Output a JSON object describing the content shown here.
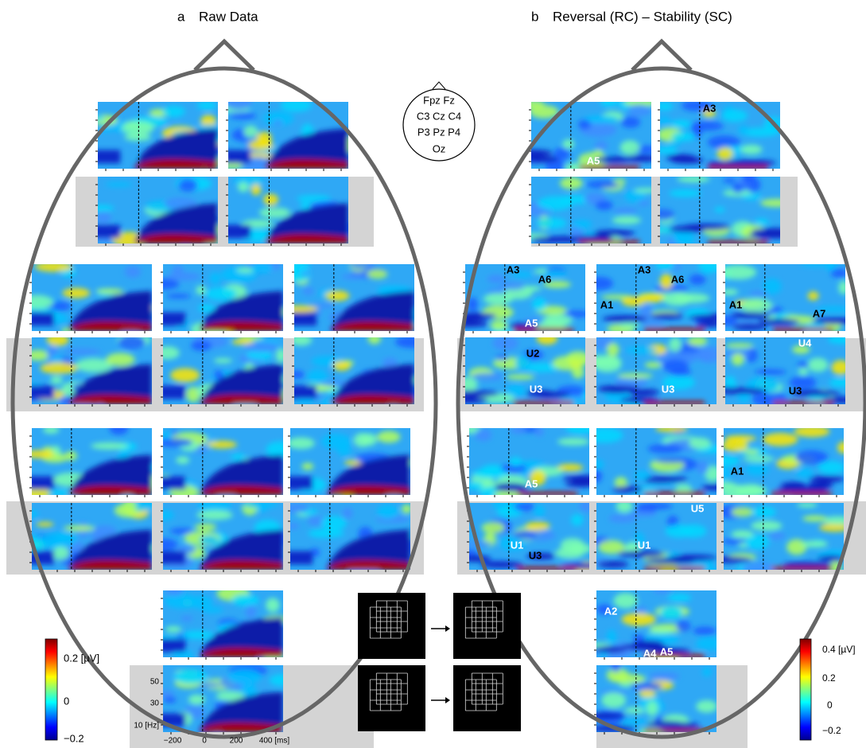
{
  "panels": {
    "a": {
      "label": "a",
      "title": "Raw Data"
    },
    "b": {
      "label": "b",
      "title": "Reversal (RC) – Stability (SC)"
    }
  },
  "electrode_map": [
    "Fpz Fz",
    "C3 Cz C4",
    "P3 Pz P4",
    "Oz"
  ],
  "annotations": [
    "A5",
    "A3",
    "A3",
    "A6",
    "A3",
    "A6",
    "A1",
    "A1",
    "A7",
    "A5",
    "U2",
    "U4",
    "U3",
    "U3",
    "U3",
    "A5",
    "A1",
    "U5",
    "U1",
    "U3",
    "U1",
    "A2",
    "A4",
    "A5"
  ],
  "colorbar_left": {
    "ticks": [
      "0.2 [µV]",
      "0",
      "−0.2"
    ]
  },
  "colorbar_right": {
    "ticks": [
      "0.4 [µV]",
      "0.2",
      "0",
      "−0.2"
    ]
  },
  "axes": {
    "y_ticks": [
      "50",
      "30",
      "10 [Hz]"
    ],
    "x_ticks": [
      "−200",
      "0",
      "200",
      "400 [ms]"
    ]
  }
}
